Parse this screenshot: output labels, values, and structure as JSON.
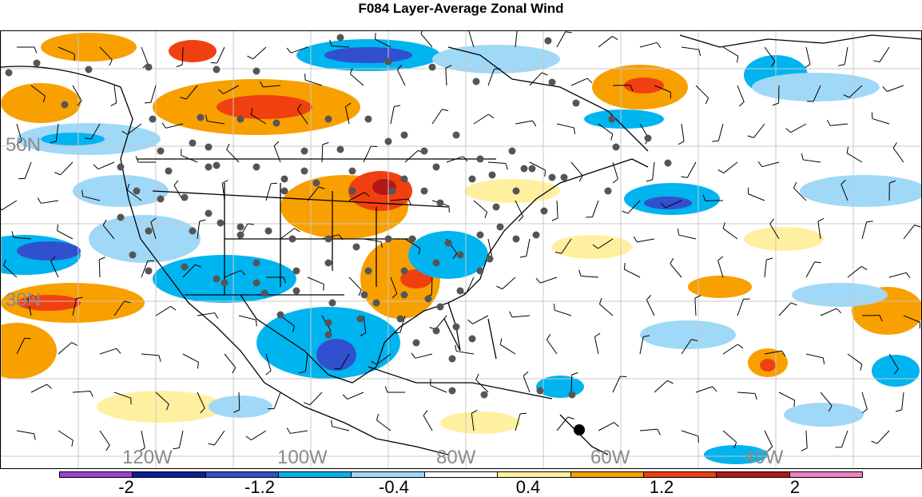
{
  "title": "F084 Layer-Average Zonal Wind",
  "lat_labels": [
    "50N",
    "30N"
  ],
  "lon_labels": [
    "120W",
    "100W",
    "80W",
    "60W",
    "40W"
  ],
  "colorbar": {
    "colors": [
      "#a040d0",
      "#0a1e96",
      "#3050d0",
      "#00b4f0",
      "#a0d8f8",
      "#ffffff",
      "#fff0a0",
      "#f8a000",
      "#f04010",
      "#b01818",
      "#f080c0"
    ],
    "tick_labels": [
      "-2",
      "-1.2",
      "-0.4",
      "0.4",
      "1.2",
      "2"
    ]
  },
  "colors": {
    "land_outline": "#000000",
    "grid": "#c8c8c8",
    "station": "#555555",
    "label_gray": "#8a8a8a"
  }
}
